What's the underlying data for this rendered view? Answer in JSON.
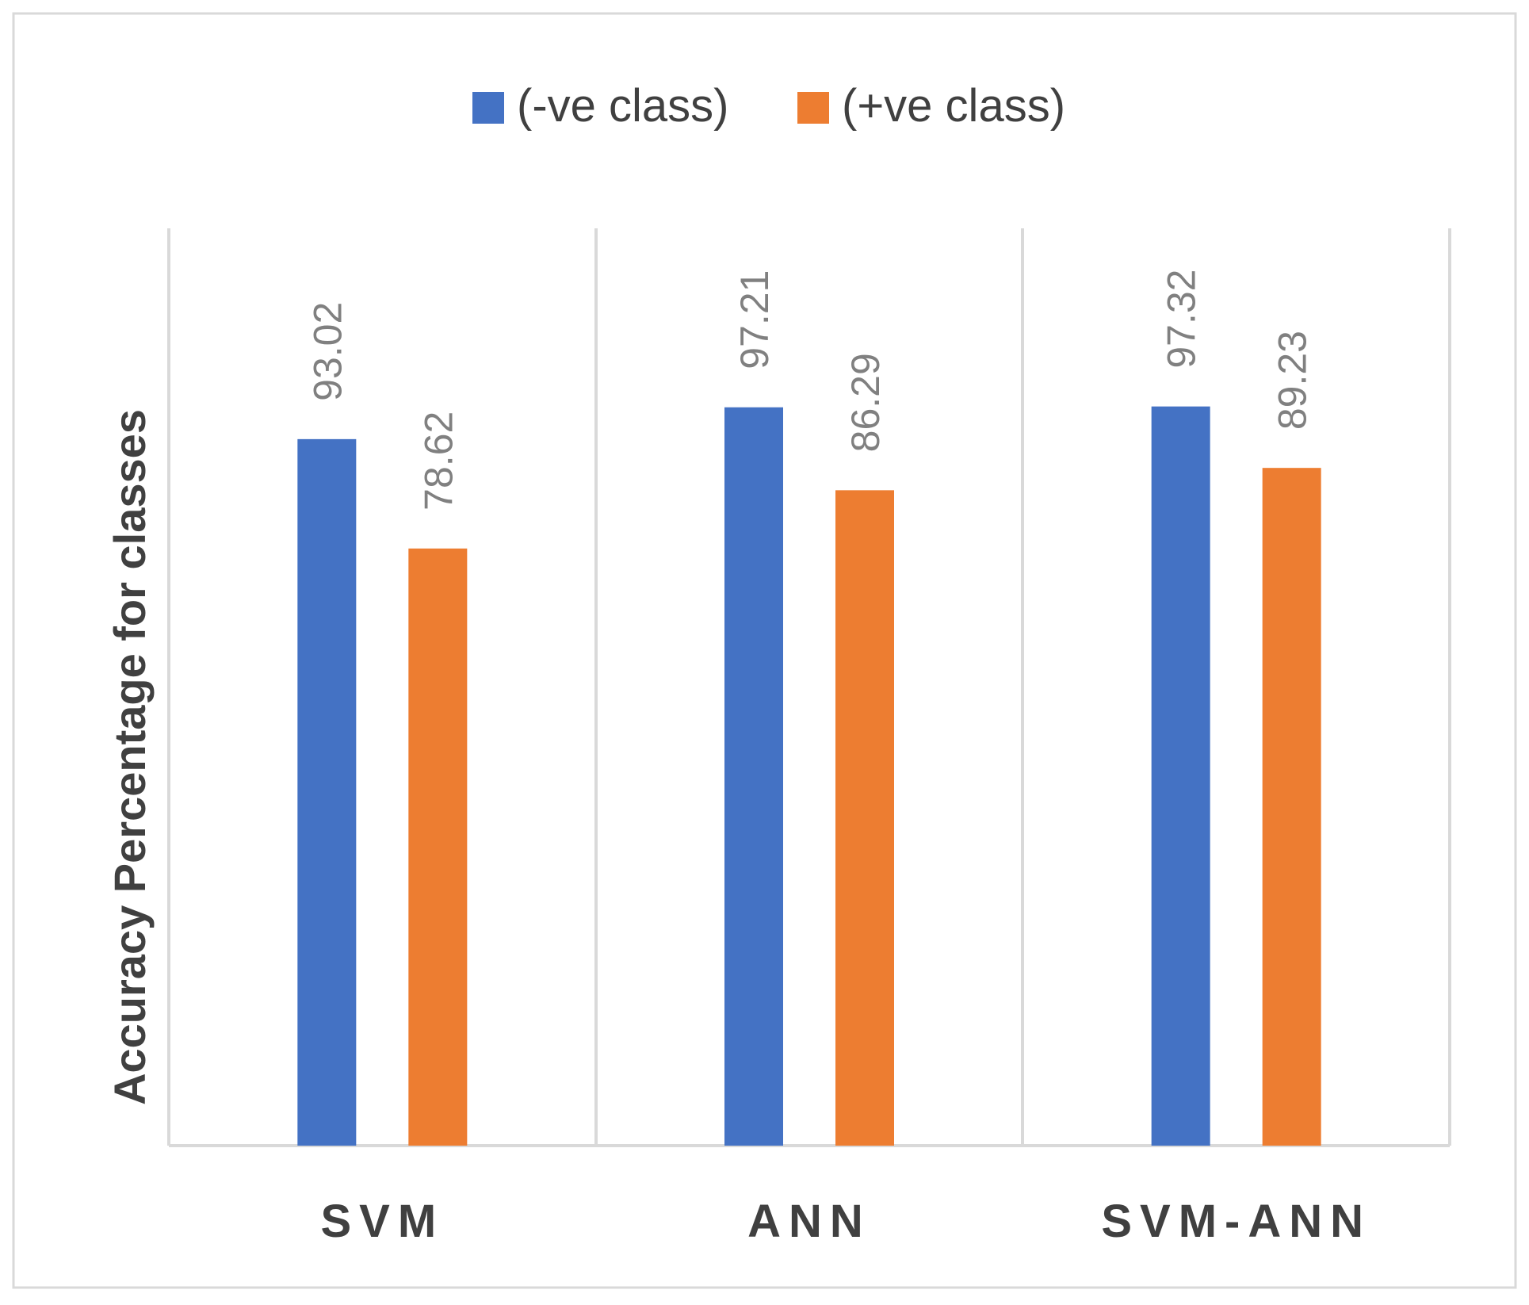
{
  "chart_data": {
    "type": "bar",
    "title": "",
    "xlabel": "",
    "ylabel": "Accuracy  Percentage for classes",
    "categories": [
      "SVM",
      "ANN",
      "SVM-ANN"
    ],
    "series": [
      {
        "name": "(-ve class)",
        "color": "#4472C4",
        "values": [
          93.02,
          97.21,
          97.32
        ]
      },
      {
        "name": "(+ve class)",
        "color": "#ED7D31",
        "values": [
          78.62,
          86.29,
          89.23
        ]
      }
    ],
    "ylim": [
      0,
      100
    ],
    "grid": false,
    "legend": "top",
    "data_labels": [
      "93.02",
      "78.62",
      "97.21",
      "86.29",
      "97.32",
      "89.23"
    ]
  }
}
